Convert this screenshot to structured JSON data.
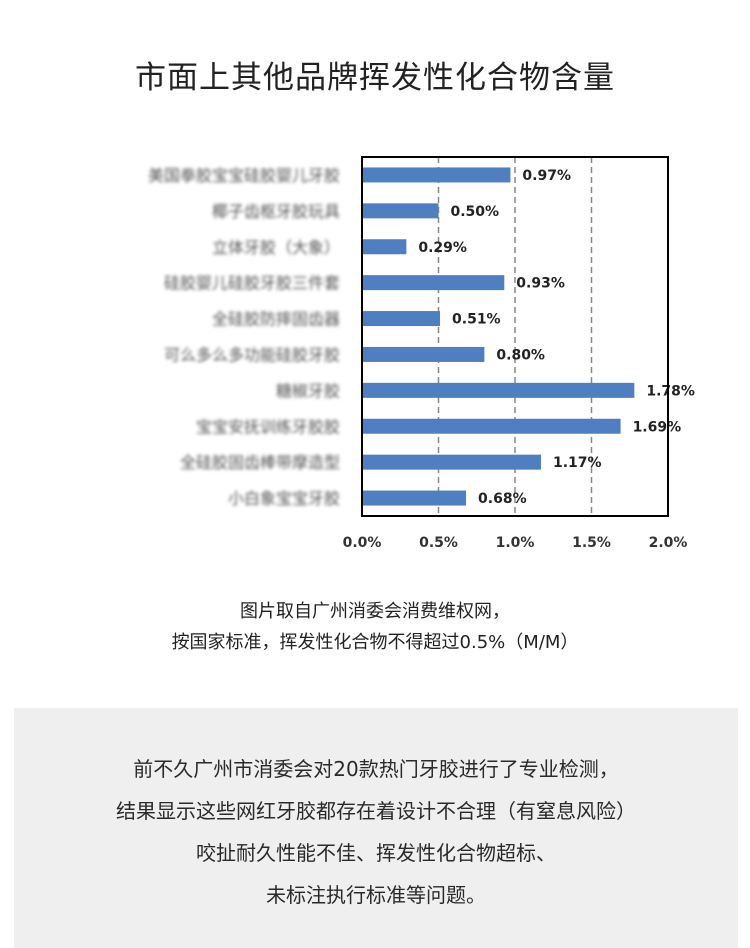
{
  "page": {
    "title": "市面上其他品牌挥发性化合物含量"
  },
  "caption": {
    "line1": "图片取自广州消委会消费维权网，",
    "line2": "按国家标准，挥发性化合物不得超过0.5%（M/M）"
  },
  "note": {
    "line1": "前不久广州市消委会对20款热门牙胶进行了专业检测，",
    "line2": "结果显示这些网红牙胶都存在着设计不合理（有窒息风险）",
    "line3": "咬扯耐久性能不佳、挥发性化合物超标、",
    "line4": "未标注执行标准等问题。"
  },
  "chart_data": {
    "type": "bar",
    "orientation": "horizontal",
    "categories": [
      "美国拳胶宝宝硅胶婴儿牙胶",
      "椰子齿枢牙胶玩具",
      "立体牙胶（大象）",
      "硅胶婴儿硅胶牙胶三件套",
      "全硅胶防摔固齿器",
      "可么多么多功能硅胶牙胶",
      "糖椒牙胶",
      "宝宝安抚训练牙胶胶",
      "全硅胶固齿棒带摩造型",
      "小白象宝宝牙胶"
    ],
    "values": [
      0.97,
      0.5,
      0.29,
      0.93,
      0.51,
      0.8,
      1.78,
      1.69,
      1.17,
      0.68
    ],
    "value_labels": [
      "0.97%",
      "0.50%",
      "0.29%",
      "0.93%",
      "0.51%",
      "0.80%",
      "1.78%",
      "1.69%",
      "1.17%",
      "0.68%"
    ],
    "xlim": [
      0,
      2.0
    ],
    "x_ticks": [
      "0.0%",
      "0.5%",
      "1.0%",
      "1.5%",
      "2.0%"
    ],
    "x_tick_values": [
      0,
      0.5,
      1.0,
      1.5,
      2.0
    ],
    "grid": "vertical dashed",
    "bar_color": "#4f7fc0",
    "category_labels_blurred": true
  }
}
